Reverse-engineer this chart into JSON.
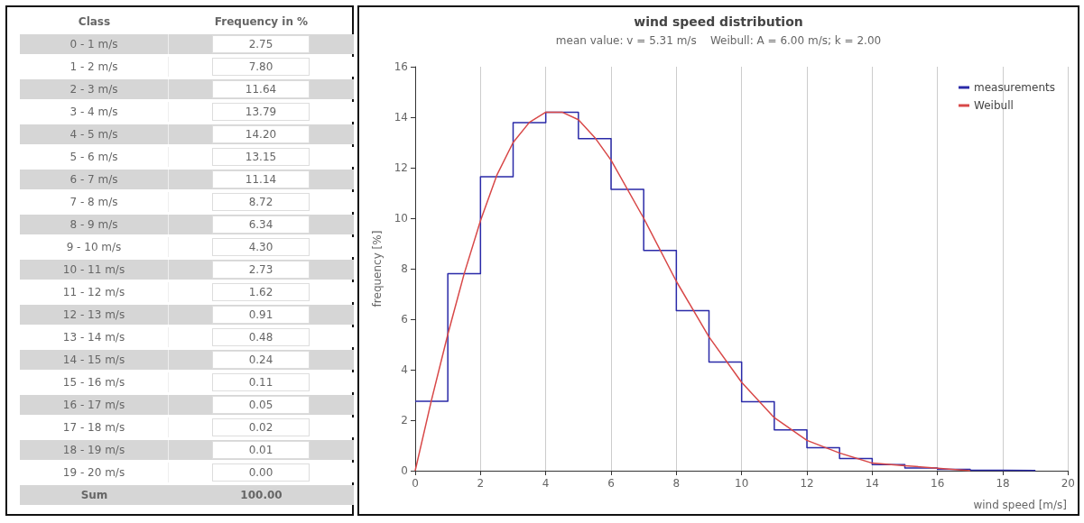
{
  "chart_data": [
    {
      "type": "other",
      "annotations": [
        "Class",
        "Frequency in %",
        "0 - 1 m/s",
        "2.75",
        "1 - 2 m/s",
        "7.80",
        "2 - 3 m/s",
        "11.64",
        "3 - 4 m/s",
        "13.79",
        "4 - 5 m/s",
        "14.20",
        "5 - 6 m/s",
        "13.15",
        "6 - 7 m/s",
        "11.14",
        "7 - 8 m/s",
        "8.72",
        "8 - 9 m/s",
        "6.34",
        "9 - 10 m/s",
        "4.30",
        "10 - 11 m/s",
        "2.73",
        "11 - 12 m/s",
        "1.62",
        "12 - 13 m/s",
        "0.91",
        "13 - 14 m/s",
        "0.48",
        "14 - 15 m/s",
        "0.24",
        "15 - 16 m/s",
        "0.11",
        "16 - 17 m/s",
        "0.05",
        "17 - 18 m/s",
        "0.02",
        "18 - 19 m/s",
        "0.01",
        "19 - 20 m/s",
        "0.00",
        "Sum",
        "100.00"
      ]
    },
    {
      "type": "step",
      "title": "wind speed distribution",
      "subtitle": "mean value: v = 5.31 m/s    Weibull: A = 6.00 m/s; k = 2.00",
      "xlabel": "wind speed [m/s]",
      "ylabel": "frequency [%]",
      "series": [
        {
          "name": "measurements",
          "color": "#2a2aa8",
          "x": [
            0,
            1,
            2,
            3,
            4,
            5,
            6,
            7,
            8,
            9,
            10,
            11,
            12,
            13,
            14,
            15,
            16,
            17,
            18,
            19
          ],
          "values": [
            2.75,
            7.8,
            11.64,
            13.79,
            14.2,
            13.15,
            11.14,
            8.72,
            6.34,
            4.3,
            2.73,
            1.62,
            0.91,
            0.48,
            0.24,
            0.11,
            0.05,
            0.02,
            0.01,
            0.0
          ]
        },
        {
          "name": "Weibull",
          "type": "line",
          "color": "#d84848",
          "x": [
            0,
            0.5,
            1,
            1.5,
            2,
            2.5,
            3,
            3.5,
            4,
            4.5,
            5,
            5.5,
            6,
            7,
            8,
            9,
            10,
            11,
            12,
            13,
            14,
            15,
            16,
            17
          ],
          "values": [
            0,
            2.8,
            5.4,
            7.8,
            9.9,
            11.7,
            13.0,
            13.8,
            14.2,
            14.2,
            13.9,
            13.2,
            12.3,
            10.0,
            7.5,
            5.3,
            3.5,
            2.1,
            1.2,
            0.7,
            0.3,
            0.2,
            0.1,
            0.0
          ]
        }
      ],
      "xlim": [
        0,
        20
      ],
      "xticks": [
        0,
        2,
        4,
        6,
        8,
        10,
        12,
        14,
        16,
        18,
        20
      ],
      "ylim": [
        0,
        16
      ],
      "yticks": [
        0,
        2,
        4,
        6,
        8,
        10,
        12,
        14,
        16
      ],
      "grid": "x",
      "legend": "top right"
    }
  ]
}
